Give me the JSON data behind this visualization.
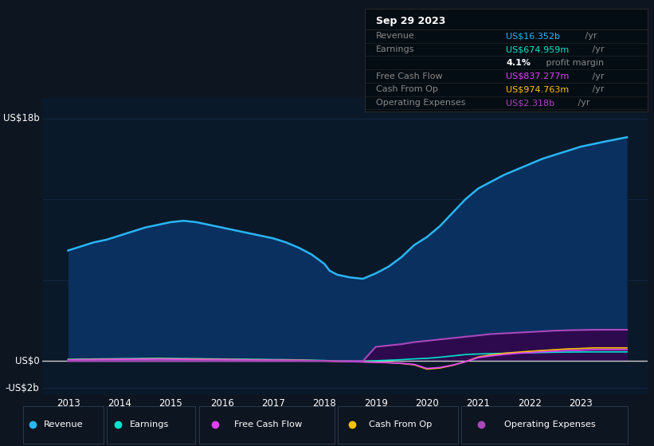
{
  "background_color": "#0d1520",
  "plot_bg_color": "#0a1929",
  "title_box_bg": "#050d14",
  "grid_color": "#1a3a5c",
  "zero_line_color": "#cccccc",
  "x_years": [
    2013,
    2013.25,
    2013.5,
    2013.75,
    2014,
    2014.25,
    2014.5,
    2014.75,
    2015,
    2015.25,
    2015.5,
    2015.75,
    2016,
    2016.25,
    2016.5,
    2016.75,
    2017,
    2017.25,
    2017.5,
    2017.75,
    2018,
    2018.1,
    2018.25,
    2018.5,
    2018.75,
    2019,
    2019.25,
    2019.5,
    2019.75,
    2020,
    2020.25,
    2020.5,
    2020.75,
    2021,
    2021.25,
    2021.5,
    2021.75,
    2022,
    2022.25,
    2022.5,
    2022.75,
    2023,
    2023.25,
    2023.5,
    2023.9
  ],
  "revenue": [
    8.2,
    8.5,
    8.8,
    9.0,
    9.3,
    9.6,
    9.9,
    10.1,
    10.3,
    10.4,
    10.3,
    10.1,
    9.9,
    9.7,
    9.5,
    9.3,
    9.1,
    8.8,
    8.4,
    7.9,
    7.2,
    6.7,
    6.4,
    6.2,
    6.1,
    6.5,
    7.0,
    7.7,
    8.6,
    9.2,
    10.0,
    11.0,
    12.0,
    12.8,
    13.3,
    13.8,
    14.2,
    14.6,
    15.0,
    15.3,
    15.6,
    15.9,
    16.1,
    16.3,
    16.6
  ],
  "earnings": [
    0.12,
    0.14,
    0.15,
    0.16,
    0.17,
    0.18,
    0.19,
    0.2,
    0.19,
    0.18,
    0.17,
    0.16,
    0.15,
    0.14,
    0.13,
    0.12,
    0.11,
    0.1,
    0.08,
    0.06,
    0.04,
    0.02,
    0.01,
    0.0,
    -0.01,
    0.02,
    0.06,
    0.1,
    0.16,
    0.2,
    0.28,
    0.38,
    0.48,
    0.52,
    0.55,
    0.57,
    0.59,
    0.61,
    0.63,
    0.65,
    0.66,
    0.67,
    0.675,
    0.675,
    0.675
  ],
  "free_cash_flow": [
    0.08,
    0.09,
    0.1,
    0.11,
    0.12,
    0.13,
    0.13,
    0.14,
    0.13,
    0.12,
    0.11,
    0.1,
    0.1,
    0.09,
    0.08,
    0.07,
    0.07,
    0.06,
    0.05,
    0.03,
    0.01,
    -0.01,
    -0.03,
    -0.05,
    -0.07,
    -0.1,
    -0.13,
    -0.17,
    -0.25,
    -0.55,
    -0.48,
    -0.3,
    -0.05,
    0.25,
    0.38,
    0.48,
    0.57,
    0.62,
    0.68,
    0.73,
    0.78,
    0.8,
    0.837,
    0.84,
    0.84
  ],
  "cash_from_op": [
    0.1,
    0.11,
    0.12,
    0.13,
    0.14,
    0.15,
    0.16,
    0.17,
    0.16,
    0.15,
    0.14,
    0.13,
    0.12,
    0.11,
    0.1,
    0.09,
    0.08,
    0.07,
    0.06,
    0.04,
    0.02,
    0.0,
    -0.02,
    -0.04,
    -0.06,
    -0.08,
    -0.12,
    -0.18,
    -0.28,
    -0.6,
    -0.52,
    -0.32,
    -0.05,
    0.3,
    0.45,
    0.57,
    0.65,
    0.72,
    0.78,
    0.84,
    0.9,
    0.93,
    0.975,
    0.975,
    0.975
  ],
  "operating_expenses": [
    0.0,
    0.0,
    0.0,
    0.0,
    0.0,
    0.0,
    0.0,
    0.0,
    0.0,
    0.0,
    0.0,
    0.0,
    0.0,
    0.0,
    0.0,
    0.0,
    0.0,
    0.0,
    0.0,
    0.0,
    0.0,
    0.0,
    0.0,
    0.0,
    0.0,
    1.05,
    1.15,
    1.25,
    1.4,
    1.5,
    1.6,
    1.7,
    1.8,
    1.9,
    2.0,
    2.05,
    2.1,
    2.15,
    2.2,
    2.25,
    2.28,
    2.3,
    2.318,
    2.32,
    2.32
  ],
  "ylim": [
    -2.5,
    19.5
  ],
  "xlim": [
    2012.5,
    2024.3
  ],
  "xticks": [
    2013,
    2014,
    2015,
    2016,
    2017,
    2018,
    2019,
    2020,
    2021,
    2022,
    2023
  ],
  "ytick_positions": [
    -2,
    0,
    18
  ],
  "ytick_labels": [
    "-US$2b",
    "US$0",
    "US$18b"
  ],
  "gridlines_y": [
    -2,
    0,
    6,
    12,
    18
  ],
  "legend": [
    {
      "label": "Revenue",
      "color": "#29b6f6"
    },
    {
      "label": "Earnings",
      "color": "#00e5cc"
    },
    {
      "label": "Free Cash Flow",
      "color": "#e040fb"
    },
    {
      "label": "Cash From Op",
      "color": "#ffc107"
    },
    {
      "label": "Operating Expenses",
      "color": "#ab47bc"
    }
  ],
  "revenue_line_color": "#29b6f6",
  "revenue_fill_color": "#0a3060",
  "opex_line_color": "#ab47bc",
  "opex_fill_color": "#2d0a4e",
  "earnings_color": "#00e5cc",
  "fcf_color": "#e040fb",
  "cfop_color": "#ffc107",
  "tooltip": {
    "bg": "#050d14",
    "border": "#2a2a2a",
    "date": "Sep 29 2023",
    "date_color": "#ffffff",
    "rows": [
      {
        "label": "Revenue",
        "label_color": "#888888",
        "value": "US$16.352b",
        "suffix": " /yr",
        "value_color": "#29b6f6"
      },
      {
        "label": "Earnings",
        "label_color": "#888888",
        "value": "US$674.959m",
        "suffix": " /yr",
        "value_color": "#00e5cc"
      },
      {
        "label": "",
        "label_color": "#888888",
        "bold": "4.1%",
        "rest": " profit margin",
        "value_color": "#ffffff"
      },
      {
        "label": "Free Cash Flow",
        "label_color": "#888888",
        "value": "US$837.277m",
        "suffix": " /yr",
        "value_color": "#e040fb"
      },
      {
        "label": "Cash From Op",
        "label_color": "#888888",
        "value": "US$974.763m",
        "suffix": " /yr",
        "value_color": "#ffc107"
      },
      {
        "label": "Operating Expenses",
        "label_color": "#888888",
        "value": "US$2.318b",
        "suffix": " /yr",
        "value_color": "#ab47bc"
      }
    ]
  }
}
